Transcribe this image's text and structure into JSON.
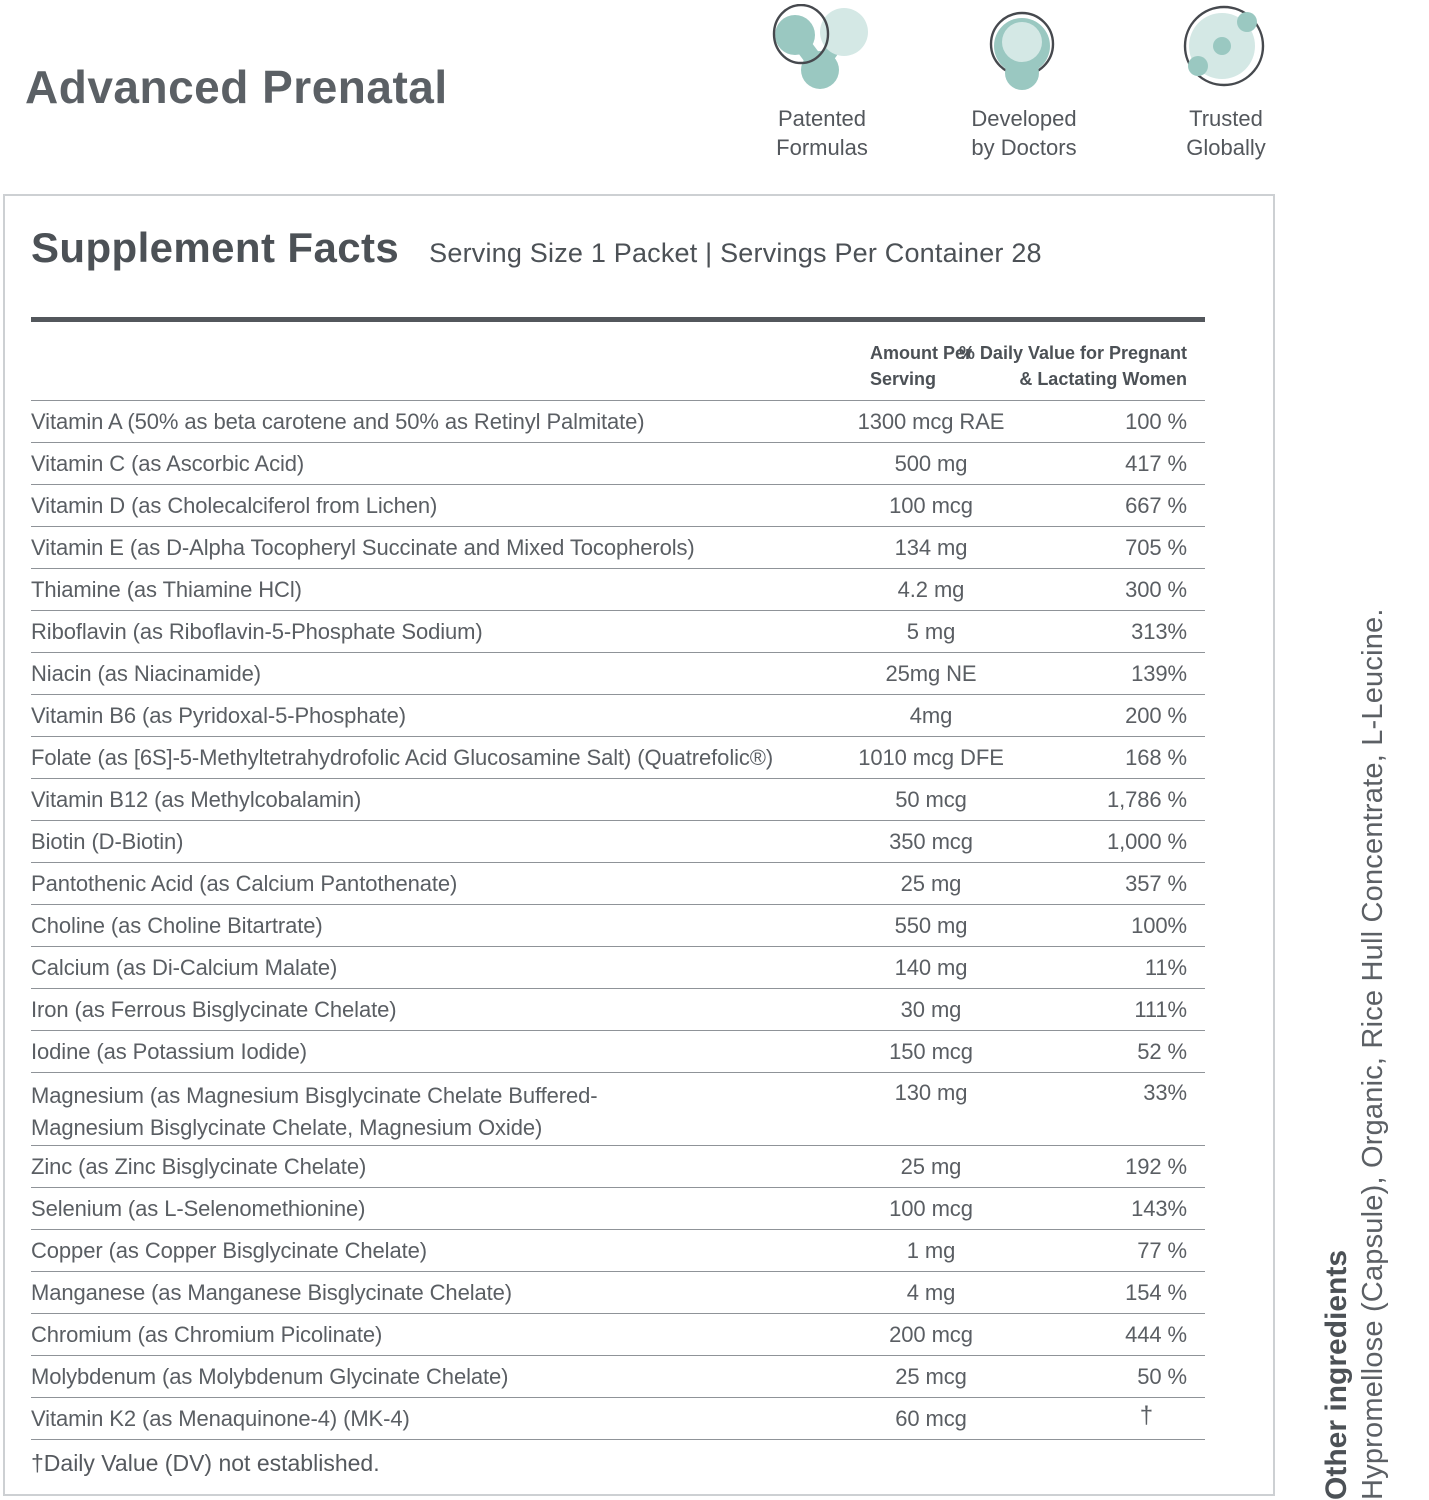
{
  "header": {
    "title": "Advanced Prenatal"
  },
  "badges": [
    {
      "icon": "molecule-icon",
      "label": "Patented Formulas"
    },
    {
      "icon": "capsule-icon",
      "label": "Developed by Doctors"
    },
    {
      "icon": "globe-icon",
      "label": "Trusted Globally"
    }
  ],
  "colors": {
    "teal_medium": "#9ac8c1",
    "teal_light": "#d4e8e5",
    "outline_dark": "#46494e",
    "text_dark": "#4c5156",
    "rule_dark": "#53575c",
    "divider_gray": "#8f9398",
    "panel_border": "#cdd0d3"
  },
  "panel": {
    "title": "Supplement Facts",
    "serving_info": "Serving Size 1 Packet | Servings Per Container 28",
    "columns": {
      "amount_line1": "Amount Per",
      "amount_line2": "Serving",
      "dv_line1": "% Daily Value for Pregnant",
      "dv_line2": "& Lactating Women"
    },
    "rows": [
      {
        "name": "Vitamin A (50% as beta carotene and 50% as Retinyl Palmitate)",
        "amount": "1300 mcg RAE",
        "dv": "100 %"
      },
      {
        "name": "Vitamin C (as Ascorbic Acid)",
        "amount": "500 mg",
        "dv": "417 %"
      },
      {
        "name": "Vitamin D (as Cholecalciferol from Lichen)",
        "amount": "100 mcg",
        "dv": "667 %"
      },
      {
        "name": "Vitamin E (as D-Alpha Tocopheryl Succinate and Mixed Tocopherols)",
        "amount": "134 mg",
        "dv": "705 %"
      },
      {
        "name": "Thiamine (as Thiamine HCl)",
        "amount": "4.2 mg",
        "dv": "300 %"
      },
      {
        "name": "Riboflavin (as Riboflavin-5-Phosphate Sodium)",
        "amount": "5 mg",
        "dv": "313%"
      },
      {
        "name": "Niacin (as Niacinamide)",
        "amount": "25mg NE",
        "dv": "139%"
      },
      {
        "name": "Vitamin B6 (as Pyridoxal-5-Phosphate)",
        "amount": "4mg",
        "dv": "200 %"
      },
      {
        "name": "Folate (as [6S]-5-Methyltetrahydrofolic Acid Glucosamine Salt) (Quatrefolic®)",
        "amount": "1010 mcg DFE",
        "dv": "168 %"
      },
      {
        "name": "Vitamin B12 (as Methylcobalamin)",
        "amount": "50 mcg",
        "dv": "1,786 %"
      },
      {
        "name": "Biotin (D-Biotin)",
        "amount": "350 mcg",
        "dv": "1,000 %"
      },
      {
        "name": "Pantothenic Acid (as Calcium Pantothenate)",
        "amount": "25 mg",
        "dv": "357 %"
      },
      {
        "name": "Choline (as Choline Bitartrate)",
        "amount": "550 mg",
        "dv": "100%"
      },
      {
        "name": "Calcium (as Di-Calcium Malate)",
        "amount": "140 mg",
        "dv": "11%"
      },
      {
        "name": "Iron (as Ferrous Bisglycinate Chelate)",
        "amount": "30 mg",
        "dv": "111%"
      },
      {
        "name": "Iodine (as Potassium Iodide)",
        "amount": "150 mcg",
        "dv": "52 %"
      },
      {
        "name": "Magnesium (as Magnesium Bisglycinate Chelate Buffered-",
        "name2": "Magnesium Bisglycinate Chelate, Magnesium Oxide)",
        "amount": "130 mg",
        "dv": "33%",
        "wrap": true
      },
      {
        "name": "Zinc (as Zinc Bisglycinate Chelate)",
        "amount": "25 mg",
        "dv": "192 %"
      },
      {
        "name": "Selenium (as L-Selenomethionine)",
        "amount": "100 mcg",
        "dv": "143%"
      },
      {
        "name": "Copper (as Copper Bisglycinate Chelate)",
        "amount": "1 mg",
        "dv": "77 %"
      },
      {
        "name": "Manganese (as Manganese Bisglycinate Chelate)",
        "amount": "4 mg",
        "dv": "154 %"
      },
      {
        "name": "Chromium (as Chromium Picolinate)",
        "amount": "200 mcg",
        "dv": "444 %"
      },
      {
        "name": "Molybdenum (as Molybdenum Glycinate Chelate)",
        "amount": "25 mcg",
        "dv": "50 %"
      },
      {
        "name": "Vitamin K2 (as Menaquinone-4) (MK-4)",
        "amount": "60 mcg",
        "dv": "†",
        "dagger": true
      }
    ],
    "footnote": "†Daily Value (DV) not established."
  },
  "other_ingredients": {
    "heading": "Other ingredients",
    "text": "Hypromellose (Capsule), Organic, Rice Hull Concentrate, L-Leucine."
  }
}
